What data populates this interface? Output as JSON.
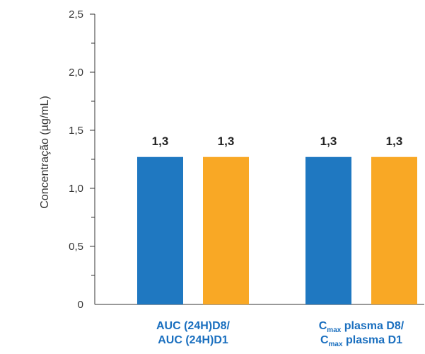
{
  "chart_data": {
    "type": "bar",
    "ylabel": "Concentração (µg/mL)",
    "ylim": [
      0,
      2.5
    ],
    "yticks": [
      "0",
      "0,5",
      "1,0",
      "1,5",
      "2,0",
      "2,5"
    ],
    "grid": false,
    "groups": [
      {
        "label_lines": [
          "AUC (24H)D8/",
          "AUC (24H)D1"
        ],
        "bars": [
          {
            "value": 1.27,
            "label": "1,3",
            "color": "#1f78c1"
          },
          {
            "value": 1.27,
            "label": "1,3",
            "color": "#f9a825"
          }
        ]
      },
      {
        "label_lines": [
          {
            "main": "C",
            "sub": "max",
            "rest": " plasma D8/"
          },
          {
            "main": "C",
            "sub": "max",
            "rest": " plasma D1"
          }
        ],
        "bars": [
          {
            "value": 1.27,
            "label": "1,3",
            "color": "#1f78c1"
          },
          {
            "value": 1.27,
            "label": "1,3",
            "color": "#f9a825"
          }
        ]
      }
    ],
    "colors": {
      "blue": "#1f78c1",
      "orange": "#f9a825",
      "label_blue": "#1a6fbf"
    }
  }
}
